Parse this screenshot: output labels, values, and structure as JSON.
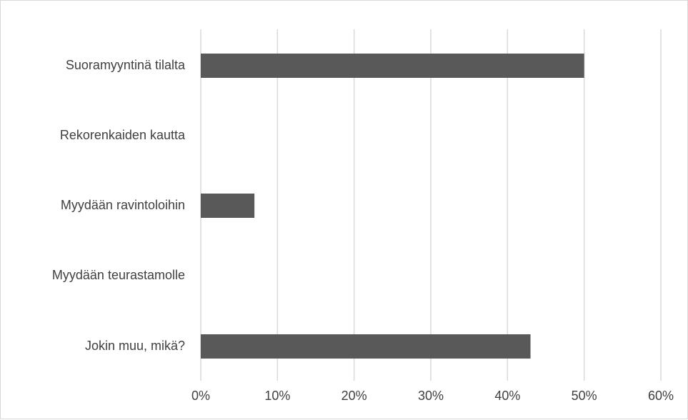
{
  "chart_data": {
    "type": "bar",
    "orientation": "horizontal",
    "categories": [
      "Suoramyyntinä tilalta",
      "Rekorenkaiden kautta",
      "Myydään ravintoloihin",
      "Myydään teurastamolle",
      "Jokin muu, mikä?"
    ],
    "values": [
      50,
      0,
      7,
      0,
      43
    ],
    "value_unit": "%",
    "x_ticks": [
      "0%",
      "10%",
      "20%",
      "30%",
      "40%",
      "50%",
      "60%"
    ],
    "xlim": [
      0,
      60
    ],
    "grid": "vertical",
    "legend": "none",
    "bar_color": "#595959",
    "grid_color": "#d9d9d9",
    "text_color": "#404040"
  }
}
